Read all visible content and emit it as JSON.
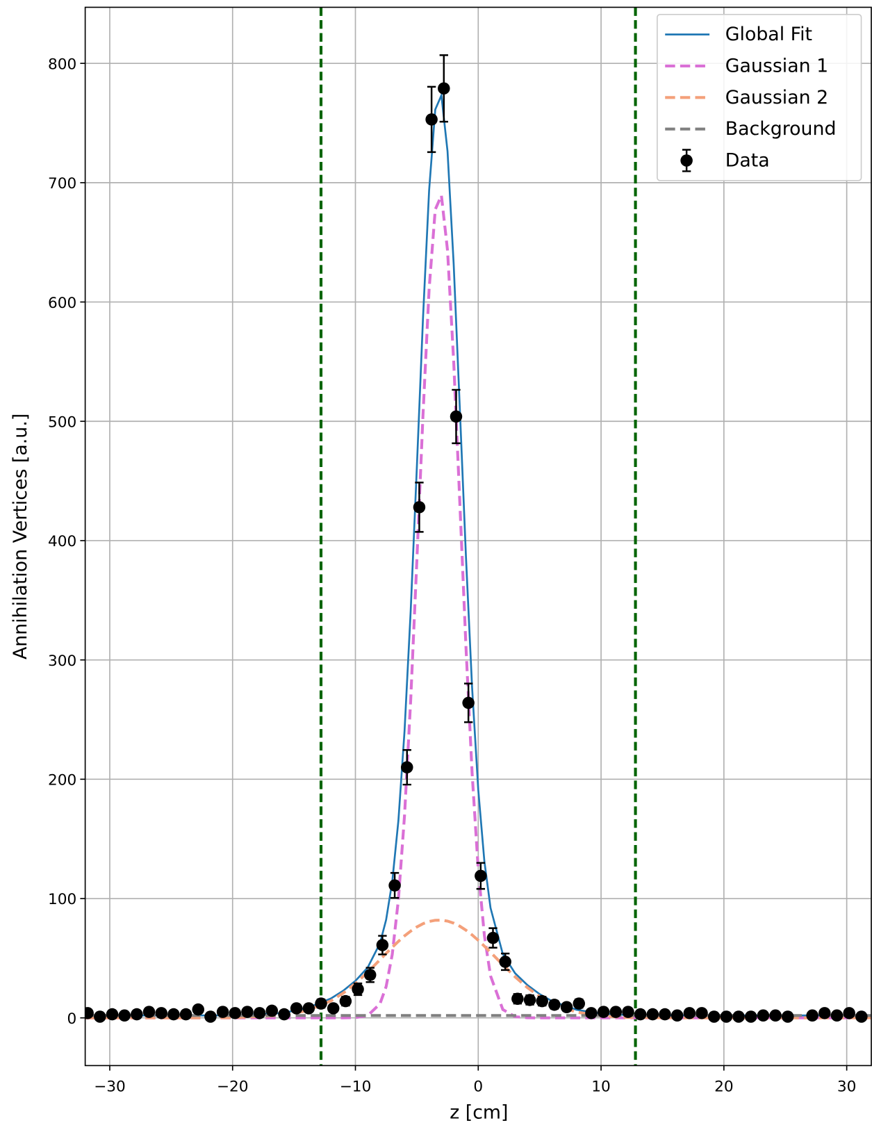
{
  "chart_data": {
    "type": "line",
    "xlabel": "z [cm]",
    "ylabel": "Annihilation Vertices [a.u.]",
    "xlim": [
      -32,
      32
    ],
    "ylim": [
      -40,
      847
    ],
    "xticks": [
      {
        "value": -30,
        "label": "−30"
      },
      {
        "value": -20,
        "label": "−20"
      },
      {
        "value": -10,
        "label": "−10"
      },
      0,
      10,
      20,
      30
    ],
    "yticks": [
      0,
      100,
      200,
      300,
      400,
      500,
      600,
      700,
      800
    ],
    "grid": true,
    "legend": "upper right",
    "vlines": [
      -12.8,
      12.8
    ],
    "vline_color": "#006400",
    "series": [
      {
        "name": "Global Fit",
        "color": "#1f77b4",
        "linestyle": "solid",
        "x": [
          -32,
          -28,
          -24,
          -20,
          -16,
          -14,
          -12,
          -11,
          -10,
          -9,
          -8,
          -7.5,
          -7,
          -6.5,
          -6,
          -5.5,
          -5,
          -4.5,
          -4,
          -3.5,
          -3,
          -2.5,
          -2,
          -1.5,
          -1,
          -0.5,
          0,
          0.5,
          1,
          2,
          3,
          4,
          5,
          6,
          8,
          10,
          12,
          16,
          20,
          24,
          28,
          32
        ],
        "values": [
          2,
          2,
          2,
          2.1,
          4.0,
          7.9,
          16.2,
          22.7,
          31.0,
          42.2,
          62.5,
          82.2,
          114.3,
          165.3,
          240.5,
          341.0,
          461.0,
          585.8,
          693.5,
          761.3,
          773.2,
          726.3,
          631.9,
          510.9,
          386.5,
          276.8,
          191.4,
          131.2,
          92.2,
          53.5,
          37.4,
          27.5,
          19.9,
          14.1,
          6.8,
          3.6,
          2.4,
          2,
          2,
          2,
          2,
          2
        ]
      },
      {
        "name": "Gaussian 1",
        "color": "#da70d6",
        "linestyle": "dashed",
        "x": [
          -32,
          -28,
          -24,
          -20,
          -16,
          -14,
          -12,
          -11,
          -10,
          -9,
          -8,
          -7.5,
          -7,
          -6.5,
          -6,
          -5.5,
          -5,
          -4.5,
          -4,
          -3.5,
          -3,
          -2.5,
          -2,
          -1.5,
          -1,
          -0.5,
          0,
          0.5,
          1,
          2,
          3,
          4,
          5,
          6,
          8,
          10,
          12,
          16,
          20,
          24,
          28,
          32
        ],
        "values": [
          0,
          0,
          0,
          0,
          0,
          0,
          0,
          0,
          0.2,
          1.9,
          11.8,
          26.2,
          53.2,
          99.2,
          169.8,
          266.3,
          382.8,
          504.9,
          610.7,
          677.5,
          689.3,
          643.2,
          550.5,
          432.1,
          311.0,
          205.3,
          124.4,
          69.1,
          35.2,
          7.0,
          1.0,
          0.1,
          0,
          0,
          0,
          0,
          0,
          0,
          0,
          0,
          0,
          0
        ]
      },
      {
        "name": "Gaussian 2",
        "color": "#f4a07a",
        "linestyle": "dashed",
        "x": [
          -32,
          -28,
          -24,
          -20,
          -16,
          -14,
          -12,
          -11,
          -10,
          -9,
          -8,
          -7.5,
          -7,
          -6.5,
          -6,
          -5.5,
          -5,
          -4.5,
          -4,
          -3.5,
          -3,
          -2.5,
          -2,
          -1.5,
          -1,
          -0.5,
          0,
          0.5,
          1,
          2,
          3,
          4,
          5,
          6,
          8,
          10,
          12,
          16,
          20,
          24,
          28,
          32
        ],
        "values": [
          0,
          0,
          0,
          0.1,
          2.0,
          5.9,
          14.2,
          20.7,
          28.8,
          38.3,
          48.7,
          54.0,
          59.1,
          64.1,
          68.7,
          72.7,
          76.2,
          78.9,
          80.8,
          81.8,
          81.9,
          81.1,
          79.4,
          76.8,
          73.5,
          69.5,
          65.0,
          60.1,
          55.0,
          44.5,
          34.4,
          25.4,
          17.9,
          12.1,
          4.8,
          1.6,
          0.4,
          0,
          0,
          0,
          0,
          0
        ]
      },
      {
        "name": "Background",
        "color": "#808080",
        "linestyle": "dashed",
        "x": [
          -32,
          32
        ],
        "values": [
          2,
          2
        ]
      },
      {
        "name": "Data",
        "color": "#000000",
        "marker": "o",
        "x": [
          -31.8,
          -30.8,
          -29.8,
          -28.8,
          -27.8,
          -26.8,
          -25.8,
          -24.8,
          -23.8,
          -22.8,
          -21.8,
          -20.8,
          -19.8,
          -18.8,
          -17.8,
          -16.8,
          -15.8,
          -14.8,
          -13.8,
          -12.8,
          -11.8,
          -10.8,
          -9.8,
          -8.8,
          -7.8,
          -6.8,
          -5.8,
          -4.8,
          -3.8,
          -2.8,
          -1.8,
          -0.8,
          0.2,
          1.2,
          2.2,
          3.2,
          4.2,
          5.2,
          6.2,
          7.2,
          8.2,
          9.2,
          10.2,
          11.2,
          12.2,
          13.2,
          14.2,
          15.2,
          16.2,
          17.2,
          18.2,
          19.2,
          20.2,
          21.2,
          22.2,
          23.2,
          24.2,
          25.2,
          27.2,
          28.2,
          29.2,
          30.2,
          31.2
        ],
        "values": [
          4,
          1,
          3,
          2,
          3,
          5,
          4,
          3,
          3,
          7,
          1,
          5,
          4,
          5,
          4,
          6,
          3,
          8,
          8,
          12,
          8,
          14,
          24,
          36,
          61,
          111,
          210,
          428,
          753,
          779,
          504,
          264,
          119,
          67,
          47,
          16,
          15,
          14,
          11,
          9,
          12,
          4,
          5,
          5,
          5,
          3,
          3,
          3,
          2,
          4,
          4,
          1,
          1,
          1,
          1,
          2,
          2,
          1,
          2,
          4,
          2,
          4,
          1
        ],
        "errors": [
          2,
          1,
          1.7,
          1.4,
          1.7,
          2.2,
          2,
          1.7,
          1.7,
          2.6,
          1,
          2.2,
          2,
          2.2,
          2,
          2.4,
          1.7,
          2.8,
          2.8,
          3.5,
          2.8,
          3.7,
          4.9,
          6,
          7.8,
          10.5,
          14.5,
          20.7,
          27.4,
          27.9,
          22.4,
          16.2,
          10.9,
          8.2,
          6.9,
          4,
          3.9,
          3.7,
          3.3,
          3,
          3.5,
          2,
          2.2,
          2.2,
          2.2,
          1.7,
          1.7,
          1.7,
          1.4,
          2,
          2,
          1,
          1,
          1,
          1,
          1.4,
          1.4,
          1,
          1.4,
          2,
          1.4,
          2,
          1
        ]
      }
    ]
  }
}
